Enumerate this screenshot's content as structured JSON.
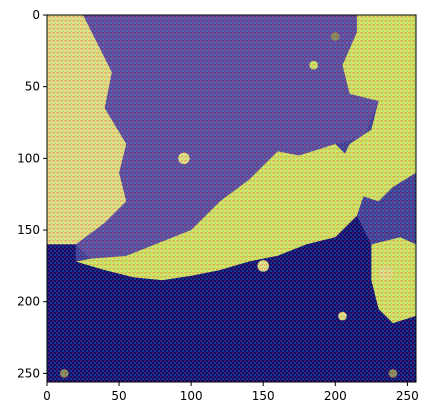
{
  "chart_data": {
    "type": "heatmap",
    "title": "",
    "xlabel": "",
    "ylabel": "",
    "xlim": [
      0,
      256
    ],
    "ylim": [
      256,
      0
    ],
    "y_inverted": true,
    "x_ticks": [
      0,
      50,
      100,
      150,
      200,
      250
    ],
    "y_ticks": [
      0,
      50,
      100,
      150,
      200,
      250
    ],
    "x_tick_labels": [
      "0",
      "50",
      "100",
      "150",
      "200",
      "250"
    ],
    "y_tick_labels": [
      "0",
      "50",
      "100",
      "150",
      "200",
      "250"
    ],
    "grid": false,
    "legend": "none",
    "colors": {
      "dark_blue": "#0d0f6e",
      "mid_blue": "#3e3f94",
      "purple": "#5b4c9c",
      "yellow_green": "#d7e85a",
      "light_yellow": "#e8e37a",
      "olive": "#8a8a55"
    },
    "regions": [
      {
        "name": "top-center-dark",
        "color": "purple",
        "polygon": [
          [
            25,
            0
          ],
          [
            215,
            0
          ],
          [
            215,
            12
          ],
          [
            205,
            35
          ],
          [
            210,
            55
          ],
          [
            230,
            60
          ],
          [
            220,
            85
          ],
          [
            200,
            90
          ],
          [
            175,
            98
          ],
          [
            160,
            95
          ],
          [
            140,
            115
          ],
          [
            120,
            130
          ],
          [
            100,
            150
          ],
          [
            75,
            160
          ],
          [
            55,
            168
          ],
          [
            30,
            170
          ],
          [
            20,
            160
          ],
          [
            40,
            145
          ],
          [
            55,
            130
          ],
          [
            50,
            110
          ],
          [
            55,
            90
          ],
          [
            40,
            65
          ],
          [
            45,
            40
          ],
          [
            35,
            20
          ]
        ]
      },
      {
        "name": "right-top-yellow",
        "color": "yellow_green",
        "polygon": [
          [
            215,
            0
          ],
          [
            256,
            0
          ],
          [
            256,
            110
          ],
          [
            240,
            120
          ],
          [
            230,
            130
          ],
          [
            215,
            125
          ],
          [
            200,
            110
          ],
          [
            210,
            90
          ],
          [
            225,
            80
          ],
          [
            230,
            60
          ],
          [
            210,
            55
          ],
          [
            205,
            35
          ],
          [
            215,
            12
          ]
        ]
      },
      {
        "name": "left-yellow",
        "color": "light_yellow",
        "polygon": [
          [
            0,
            0
          ],
          [
            25,
            0
          ],
          [
            35,
            20
          ],
          [
            45,
            40
          ],
          [
            40,
            65
          ],
          [
            55,
            90
          ],
          [
            50,
            110
          ],
          [
            55,
            130
          ],
          [
            40,
            145
          ],
          [
            20,
            160
          ],
          [
            0,
            160
          ]
        ]
      },
      {
        "name": "center-yellow-land",
        "color": "yellow_green",
        "polygon": [
          [
            160,
            95
          ],
          [
            175,
            98
          ],
          [
            200,
            90
          ],
          [
            210,
            100
          ],
          [
            205,
            115
          ],
          [
            220,
            125
          ],
          [
            215,
            140
          ],
          [
            200,
            155
          ],
          [
            180,
            160
          ],
          [
            160,
            168
          ],
          [
            140,
            172
          ],
          [
            120,
            178
          ],
          [
            100,
            182
          ],
          [
            80,
            185
          ],
          [
            60,
            183
          ],
          [
            40,
            178
          ],
          [
            20,
            172
          ],
          [
            30,
            170
          ],
          [
            55,
            168
          ],
          [
            75,
            160
          ],
          [
            100,
            150
          ],
          [
            120,
            130
          ],
          [
            140,
            115
          ]
        ]
      },
      {
        "name": "right-island",
        "color": "yellow_green",
        "polygon": [
          [
            225,
            160
          ],
          [
            245,
            155
          ],
          [
            256,
            160
          ],
          [
            256,
            210
          ],
          [
            240,
            215
          ],
          [
            230,
            205
          ],
          [
            225,
            185
          ]
        ]
      },
      {
        "name": "bottom-dark-sea",
        "color": "dark_blue",
        "polygon": [
          [
            0,
            160
          ],
          [
            20,
            160
          ],
          [
            20,
            172
          ],
          [
            40,
            178
          ],
          [
            60,
            183
          ],
          [
            80,
            185
          ],
          [
            100,
            182
          ],
          [
            120,
            178
          ],
          [
            140,
            172
          ],
          [
            160,
            168
          ],
          [
            180,
            160
          ],
          [
            200,
            155
          ],
          [
            215,
            140
          ],
          [
            225,
            160
          ],
          [
            225,
            185
          ],
          [
            230,
            205
          ],
          [
            240,
            215
          ],
          [
            256,
            210
          ],
          [
            256,
            256
          ],
          [
            0,
            256
          ]
        ]
      }
    ]
  }
}
